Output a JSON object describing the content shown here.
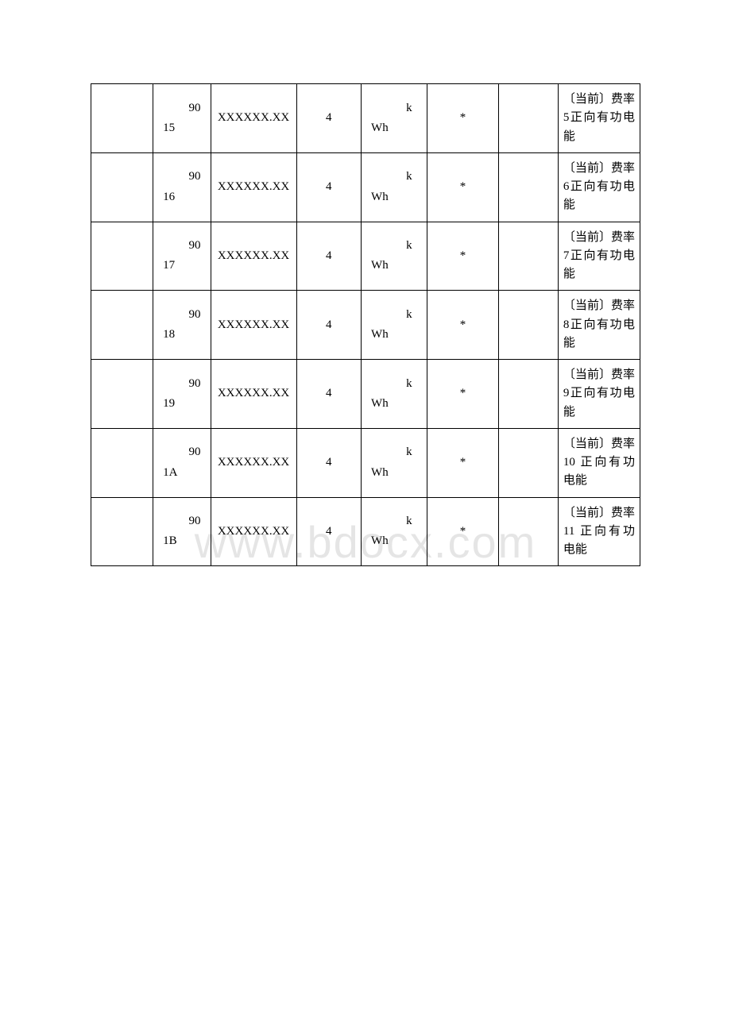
{
  "watermark": "www.bdocx.com",
  "table": {
    "rows": [
      {
        "col1_top": "90",
        "col1_bottom": "15",
        "col2": "XXXXXX.XX",
        "col3": "4",
        "col4_top": "k",
        "col4_bottom": "Wh",
        "col5": "*",
        "col7": "〔当前〕费率 5正向有功电能"
      },
      {
        "col1_top": "90",
        "col1_bottom": "16",
        "col2": "XXXXXX.XX",
        "col3": "4",
        "col4_top": "k",
        "col4_bottom": "Wh",
        "col5": "*",
        "col7": "〔当前〕费率 6正向有功电能"
      },
      {
        "col1_top": "90",
        "col1_bottom": "17",
        "col2": "XXXXXX.XX",
        "col3": "4",
        "col4_top": "k",
        "col4_bottom": "Wh",
        "col5": "*",
        "col7": "〔当前〕费率 7正向有功电能"
      },
      {
        "col1_top": "90",
        "col1_bottom": "18",
        "col2": "XXXXXX.XX",
        "col3": "4",
        "col4_top": "k",
        "col4_bottom": "Wh",
        "col5": "*",
        "col7": "〔当前〕费率 8正向有功电能"
      },
      {
        "col1_top": "90",
        "col1_bottom": "19",
        "col2": "XXXXXX.XX",
        "col3": "4",
        "col4_top": "k",
        "col4_bottom": "Wh",
        "col5": "*",
        "col7": "〔当前〕费率 9正向有功电能"
      },
      {
        "col1_top": "90",
        "col1_bottom": "1A",
        "col2": "XXXXXX.XX",
        "col3": "4",
        "col4_top": "k",
        "col4_bottom": "Wh",
        "col5": "*",
        "col7": "〔当前〕费率10 正向有功电能"
      },
      {
        "col1_top": "90",
        "col1_bottom": "1B",
        "col2": "XXXXXX.XX",
        "col3": "4",
        "col4_top": "k",
        "col4_bottom": "Wh",
        "col5": "*",
        "col7": "〔当前〕费率11 正向有功电能"
      }
    ]
  }
}
